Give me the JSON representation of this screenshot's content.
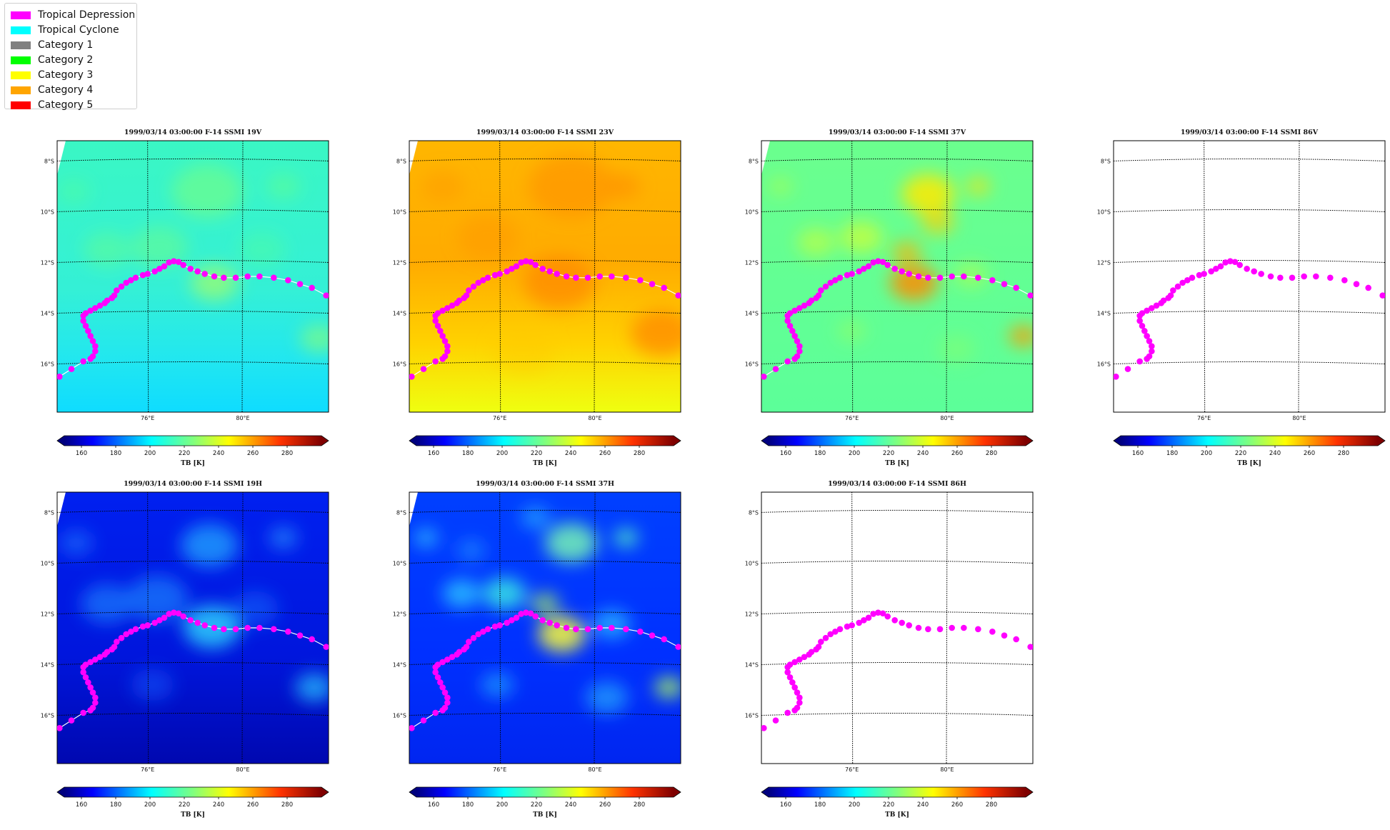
{
  "legend": {
    "items": [
      {
        "label": "Tropical Depression",
        "color": "#ff00ff"
      },
      {
        "label": "Tropical Cyclone",
        "color": "#00ffff"
      },
      {
        "label": "Category 1",
        "color": "#808080"
      },
      {
        "label": "Category 2",
        "color": "#00ff00"
      },
      {
        "label": "Category 3",
        "color": "#ffff00"
      },
      {
        "label": "Category 4",
        "color": "#ffa500"
      },
      {
        "label": "Category 5",
        "color": "#ff0000"
      }
    ]
  },
  "map": {
    "lon_range": [
      72.2,
      83.6
    ],
    "lat_range": [
      -17.9,
      -7.2
    ],
    "lat_ticks": [
      {
        "value": -8,
        "label": "8°S"
      },
      {
        "value": -10,
        "label": "10°S"
      },
      {
        "value": -12,
        "label": "12°S"
      },
      {
        "value": -14,
        "label": "14°S"
      },
      {
        "value": -16,
        "label": "16°S"
      }
    ],
    "lon_ticks": [
      {
        "value": 76,
        "label": "76°E"
      },
      {
        "value": 80,
        "label": "80°E"
      }
    ],
    "track_color": "#ff00ff",
    "track_line_color": "#ffffff",
    "track": [
      [
        72.3,
        -16.5
      ],
      [
        72.8,
        -16.2
      ],
      [
        73.3,
        -15.9
      ],
      [
        73.6,
        -15.8
      ],
      [
        73.7,
        -15.7
      ],
      [
        73.8,
        -15.5
      ],
      [
        73.8,
        -15.3
      ],
      [
        73.7,
        -15.1
      ],
      [
        73.6,
        -14.9
      ],
      [
        73.5,
        -14.7
      ],
      [
        73.4,
        -14.5
      ],
      [
        73.3,
        -14.3
      ],
      [
        73.3,
        -14.1
      ],
      [
        73.4,
        -14.0
      ],
      [
        73.6,
        -13.9
      ],
      [
        73.8,
        -13.8
      ],
      [
        74.0,
        -13.7
      ],
      [
        74.2,
        -13.6
      ],
      [
        74.3,
        -13.5
      ],
      [
        74.5,
        -13.4
      ],
      [
        74.6,
        -13.3
      ],
      [
        74.7,
        -13.1
      ],
      [
        74.9,
        -12.95
      ],
      [
        75.1,
        -12.8
      ],
      [
        75.3,
        -12.7
      ],
      [
        75.5,
        -12.6
      ],
      [
        75.8,
        -12.5
      ],
      [
        76.0,
        -12.45
      ],
      [
        76.3,
        -12.35
      ],
      [
        76.5,
        -12.25
      ],
      [
        76.7,
        -12.15
      ],
      [
        76.9,
        -12.0
      ],
      [
        77.1,
        -11.95
      ],
      [
        77.3,
        -11.98
      ],
      [
        77.5,
        -12.1
      ],
      [
        77.8,
        -12.25
      ],
      [
        78.1,
        -12.35
      ],
      [
        78.4,
        -12.45
      ],
      [
        78.8,
        -12.55
      ],
      [
        79.2,
        -12.6
      ],
      [
        79.7,
        -12.6
      ],
      [
        80.2,
        -12.55
      ],
      [
        80.7,
        -12.55
      ],
      [
        81.3,
        -12.6
      ],
      [
        81.9,
        -12.7
      ],
      [
        82.4,
        -12.85
      ],
      [
        82.9,
        -13.0
      ],
      [
        83.5,
        -13.3
      ]
    ],
    "cbar_ticks": [
      160,
      180,
      200,
      220,
      240,
      260,
      280
    ],
    "cbar_range": [
      150,
      300
    ],
    "cbar_label": "TB [K]"
  },
  "panels": [
    {
      "title": "1999/03/14 03:00:00  F-14 SSMI 19V",
      "fill": "19v"
    },
    {
      "title": "1999/03/14 03:00:00  F-14 SSMI 23V",
      "fill": "23v"
    },
    {
      "title": "1999/03/14 03:00:00  F-14 SSMI 37V",
      "fill": "37v"
    },
    {
      "title": "1999/03/14 03:00:00  F-14 SSMI 86V",
      "fill": "none"
    },
    {
      "title": "1999/03/14 03:00:00  F-14 SSMI 19H",
      "fill": "19h"
    },
    {
      "title": "1999/03/14 03:00:00  F-14 SSMI 37H",
      "fill": "37h"
    },
    {
      "title": "1999/03/14 03:00:00  F-14 SSMI 86H",
      "fill": "none"
    }
  ]
}
